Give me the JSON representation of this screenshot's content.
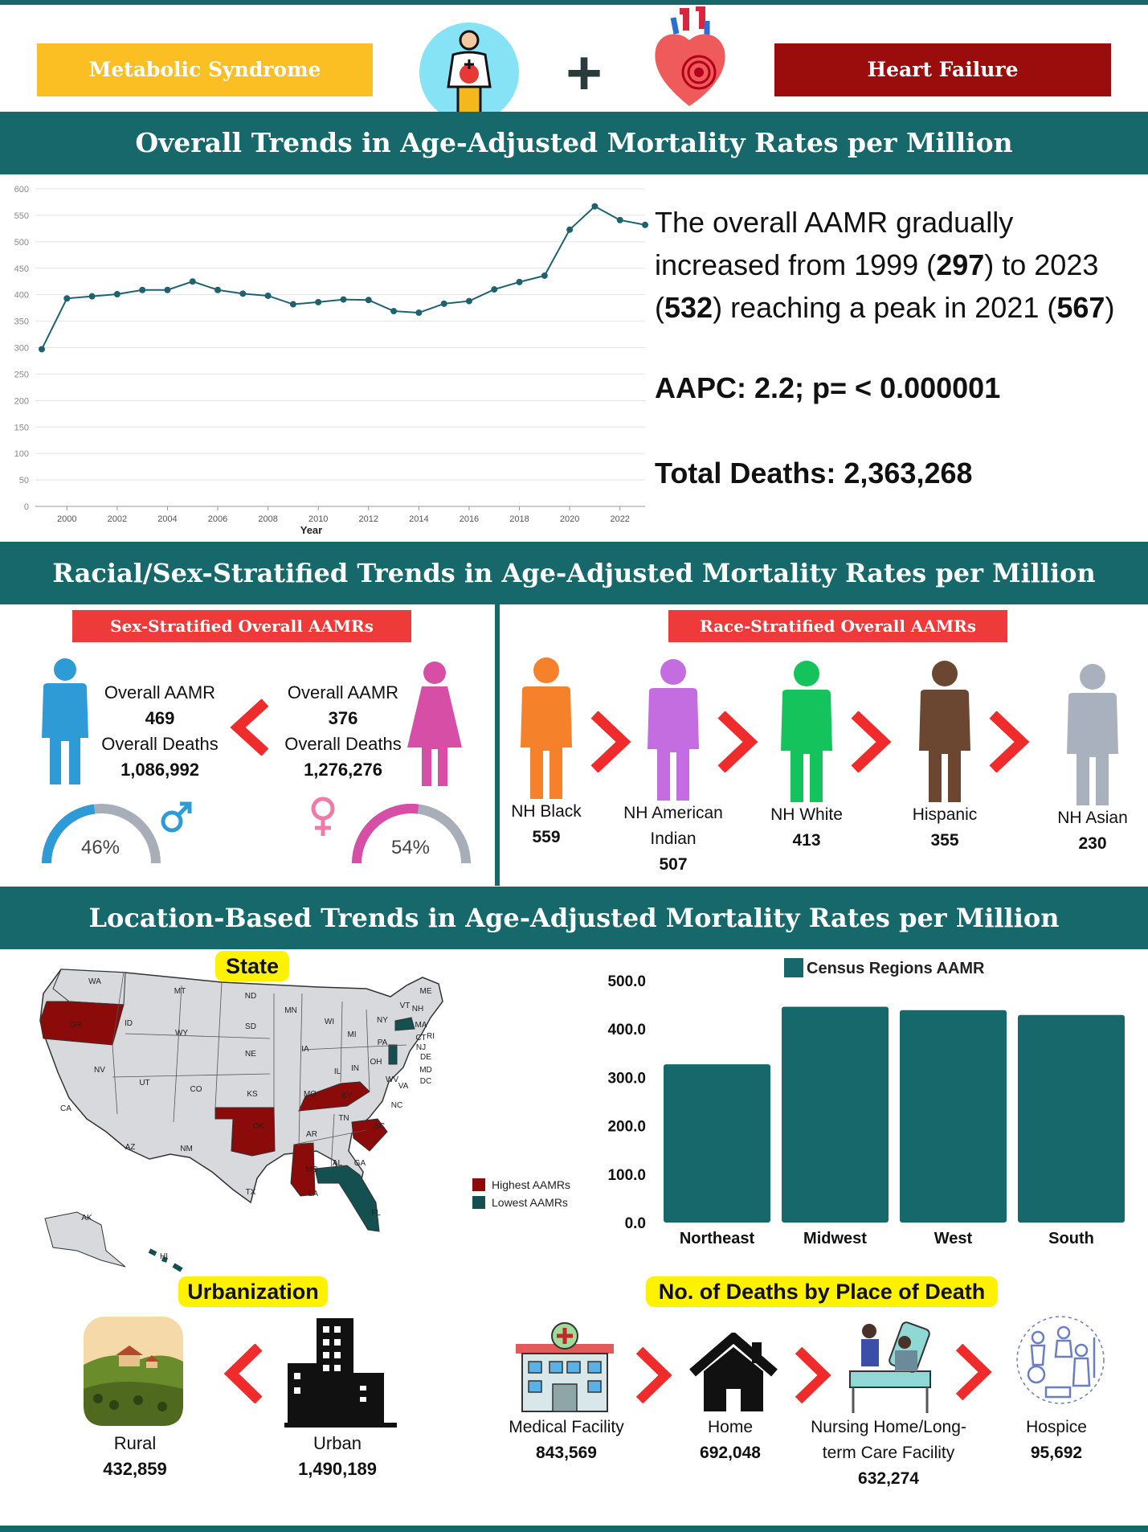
{
  "header": {
    "left_label": "Metabolic Syndrome",
    "right_label": "Heart Failure",
    "plus_symbol": "+",
    "body_icon": "person-metabolic-icon",
    "heart_icon": "heart-icon"
  },
  "section1": {
    "title": "Overall Trends in Age-Adjusted Mortality Rates per Million",
    "summary": {
      "pre": "The overall AAMR gradually increased from 1999 (",
      "v1": "297",
      "mid1": ") to 2023 (",
      "v2": "532",
      "mid2": ") reaching a peak in 2021 (",
      "v3": "567",
      "post": ")"
    },
    "aapc": "AAPC: 2.2; p= < 0.000001",
    "total_deaths": "Total Deaths: 2,363,268"
  },
  "section2": {
    "title": "Racial/Sex-Stratified Trends in Age-Adjusted Mortality Rates per Million",
    "sex_tag": "Sex-Stratified Overall AAMRs",
    "race_tag": "Race-Stratified Overall AAMRs",
    "male": {
      "aamr_label": "Overall AAMR",
      "aamr_value": "469",
      "deaths_label": "Overall Deaths",
      "deaths_value": "1,086,992",
      "percent": "46%",
      "percent_value": 46,
      "color": "#2f9bd6",
      "icon": "male-person-icon"
    },
    "female": {
      "aamr_label": "Overall AAMR",
      "aamr_value": "376",
      "deaths_label": "Overall Deaths",
      "deaths_value": "1,276,276",
      "percent": "54%",
      "percent_value": 54,
      "color": "#d64ea6",
      "icon": "female-person-icon"
    },
    "races": [
      {
        "name": "NH Black",
        "value": "559",
        "color": "#f5822a"
      },
      {
        "name": "NH American Indian",
        "value": "507",
        "color": "#c36de0"
      },
      {
        "name": "NH White",
        "value": "413",
        "color": "#14c35c"
      },
      {
        "name": "Hispanic",
        "value": "355",
        "color": "#6b4630"
      },
      {
        "name": "NH Asian",
        "value": "230",
        "color": "#a9b1be"
      }
    ]
  },
  "section3": {
    "title": "Location-Based Trends in Age-Adjusted Mortality Rates per Million",
    "state_tag": "State",
    "legend_high": "Highest AAMRs",
    "legend_low": "Lowest AAMRs",
    "color_high": "#8b0a0a",
    "color_low": "#145050",
    "urbanization_tag": "Urbanization",
    "rural": {
      "name": "Rural",
      "value": "432,859"
    },
    "urban": {
      "name": "Urban",
      "value": "1,490,189"
    },
    "place_tag": "No. of Deaths by Place of Death",
    "places": [
      {
        "name": "Medical Facility",
        "value": "843,569"
      },
      {
        "name": "Home",
        "value": "692,048"
      },
      {
        "name": "Nursing Home/Long-term Care Facility",
        "value": "632,274"
      },
      {
        "name": "Hospice",
        "value": "95,692"
      }
    ]
  },
  "chart_data": [
    {
      "type": "line",
      "title": "",
      "xlabel": "Year",
      "ylabel": "",
      "x": [
        1999,
        2000,
        2001,
        2002,
        2003,
        2004,
        2005,
        2006,
        2007,
        2008,
        2009,
        2010,
        2011,
        2012,
        2013,
        2014,
        2015,
        2016,
        2017,
        2018,
        2019,
        2020,
        2021,
        2022,
        2023
      ],
      "series": [
        {
          "values": [
            297,
            393,
            397,
            401,
            409,
            409,
            425,
            409,
            402,
            398,
            382,
            386,
            391,
            390,
            369,
            366,
            383,
            388,
            410,
            424,
            436,
            523,
            567,
            541,
            532
          ]
        }
      ],
      "xticks": [
        "2000",
        "2002",
        "2004",
        "2006",
        "2008",
        "2010",
        "2012",
        "2014",
        "2016",
        "2018",
        "2020",
        "2022"
      ],
      "yticks": [
        "0",
        "50",
        "100",
        "150",
        "200",
        "250",
        "300",
        "350",
        "400",
        "450",
        "500",
        "550",
        "600"
      ],
      "xlim": [
        1999,
        2023
      ],
      "ylim": [
        0,
        600
      ],
      "grid": true,
      "color": "#1e6270"
    },
    {
      "type": "bar",
      "title": "",
      "legend": "Census Regions AAMR",
      "categories": [
        "Northeast",
        "Midwest",
        "West",
        "South"
      ],
      "values": [
        327,
        446,
        439,
        429
      ],
      "yticks": [
        "0.0",
        "100.0",
        "200.0",
        "300.0",
        "400.0",
        "500.0"
      ],
      "ylim": [
        0,
        500
      ],
      "color": "#17686a"
    }
  ],
  "map": {
    "states_high": [
      "OR",
      "OK",
      "KY",
      "MS",
      "SC"
    ],
    "states_low": [
      "FL",
      "HI",
      "NJ",
      "MA"
    ],
    "labels": [
      "WA",
      "MT",
      "ND",
      "MN",
      "ME",
      "OR",
      "ID",
      "SD",
      "WI",
      "MI",
      "NY",
      "VT",
      "NH",
      "MA",
      "WY",
      "NE",
      "IA",
      "PA",
      "RI",
      "CT",
      "NJ",
      "DE",
      "MD",
      "DC",
      "NV",
      "UT",
      "CO",
      "KS",
      "MO",
      "IL",
      "IN",
      "OH",
      "WV",
      "VA",
      "KY",
      "CA",
      "NC",
      "TN",
      "AZ",
      "NM",
      "OK",
      "AR",
      "SC",
      "MS",
      "AL",
      "GA",
      "TX",
      "LA",
      "FL",
      "AK",
      "HI"
    ]
  }
}
